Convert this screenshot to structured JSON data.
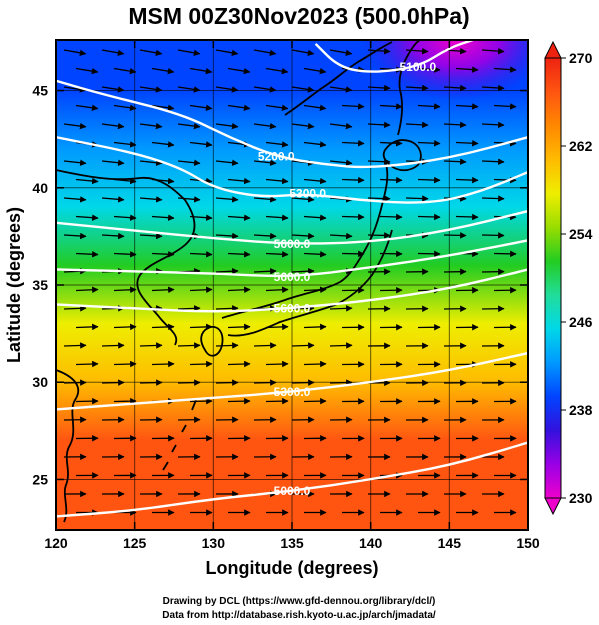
{
  "title": "MSM 00Z30Nov2023 (500.0hPa)",
  "x_axis": {
    "label": "Longitude (degrees)",
    "range": [
      120,
      150
    ],
    "ticks": [
      120,
      125,
      130,
      135,
      140,
      145,
      150
    ],
    "tick_labels": [
      "120",
      "125",
      "130",
      "135",
      "140",
      "145",
      "150"
    ]
  },
  "y_axis": {
    "label": "Latitude (degrees)",
    "range": [
      22.4,
      47.6
    ],
    "ticks": [
      25,
      30,
      35,
      40,
      45
    ],
    "tick_labels": [
      "25",
      "30",
      "35",
      "40",
      "45"
    ]
  },
  "colorbar": {
    "range": [
      230,
      270
    ],
    "ticks": [
      230,
      238,
      246,
      254,
      262,
      270
    ],
    "tick_labels": [
      "230",
      "238",
      "246",
      "254",
      "262",
      "270"
    ],
    "colors": [
      "#ee00cc",
      "#9900e6",
      "#3311dd",
      "#0044ff",
      "#0099ff",
      "#00d8e8",
      "#22dd99",
      "#22cc22",
      "#99dd00",
      "#eeee00",
      "#ffbb00",
      "#ff8800",
      "#ff5511",
      "#ee2211"
    ]
  },
  "contours": [
    {
      "label": "5000.0",
      "points": [
        [
          120,
          23.1
        ],
        [
          125,
          23.4
        ],
        [
          130,
          24.0
        ],
        [
          135,
          24.4
        ],
        [
          140,
          25.0
        ],
        [
          145,
          25.7
        ],
        [
          150,
          26.9
        ]
      ]
    },
    {
      "label": "5300.0",
      "points": [
        [
          120,
          28.6
        ],
        [
          125,
          28.9
        ],
        [
          130,
          29.2
        ],
        [
          135,
          29.5
        ],
        [
          140,
          30.0
        ],
        [
          145,
          30.6
        ],
        [
          150,
          31.5
        ]
      ]
    },
    {
      "label": "5600.0",
      "points": [
        [
          120,
          34.0
        ],
        [
          125,
          33.8
        ],
        [
          130,
          33.6
        ],
        [
          135,
          33.8
        ],
        [
          140,
          34.2
        ],
        [
          145,
          34.8
        ],
        [
          150,
          35.8
        ]
      ]
    },
    {
      "label": "5600.0",
      "points": [
        [
          120,
          35.8
        ],
        [
          125,
          35.7
        ],
        [
          130,
          35.6
        ],
        [
          135,
          35.4
        ],
        [
          140,
          35.9
        ],
        [
          145,
          36.5
        ],
        [
          150,
          37.3
        ]
      ]
    },
    {
      "label": "5600.0",
      "points": [
        [
          120,
          38.2
        ],
        [
          125,
          37.8
        ],
        [
          130,
          37.4
        ],
        [
          135,
          37.1
        ],
        [
          140,
          37.2
        ],
        [
          145,
          37.8
        ],
        [
          150,
          38.8
        ]
      ]
    },
    {
      "label": "5300.0",
      "points": [
        [
          120,
          42.6
        ],
        [
          125,
          41.8
        ],
        [
          128,
          41.0
        ],
        [
          130,
          40.0
        ],
        [
          133,
          39.5
        ],
        [
          136,
          39.7
        ],
        [
          140,
          39.3
        ],
        [
          144,
          39.2
        ],
        [
          147,
          39.8
        ],
        [
          150,
          40.8
        ]
      ]
    },
    {
      "label": "5200.0",
      "points": [
        [
          120,
          45.5
        ],
        [
          123,
          44.8
        ],
        [
          128,
          43.8
        ],
        [
          131,
          42.6
        ],
        [
          134,
          41.6
        ],
        [
          137,
          41.2
        ],
        [
          140,
          41.0
        ],
        [
          145,
          41.5
        ],
        [
          150,
          42.6
        ]
      ]
    },
    {
      "label": "5100.0",
      "points": [
        [
          136.5,
          47.4
        ],
        [
          138,
          46.2
        ],
        [
          140,
          45.9
        ],
        [
          143,
          46.2
        ],
        [
          145,
          47.2
        ],
        [
          146.5,
          47.6
        ]
      ]
    }
  ],
  "isotherm_rows": [
    {
      "lat": 47.6,
      "value": 240
    },
    {
      "lat": 45,
      "value": 240
    },
    {
      "lat": 42,
      "value": 243
    },
    {
      "lat": 39,
      "value": 246
    },
    {
      "lat": 36,
      "value": 251
    },
    {
      "lat": 33,
      "value": 257
    },
    {
      "lat": 30,
      "value": 262
    },
    {
      "lat": 27,
      "value": 266
    },
    {
      "lat": 22.4,
      "value": 268
    }
  ],
  "cold_core": {
    "lon": 145.5,
    "lat": 47.6,
    "value": 231
  },
  "credits": [
    "Drawing by DCL (https://www.gfd-dennou.org/library/dcl/)",
    "Data from http://database.rish.kyoto-u.ac.jp/arch/jmadata/"
  ]
}
